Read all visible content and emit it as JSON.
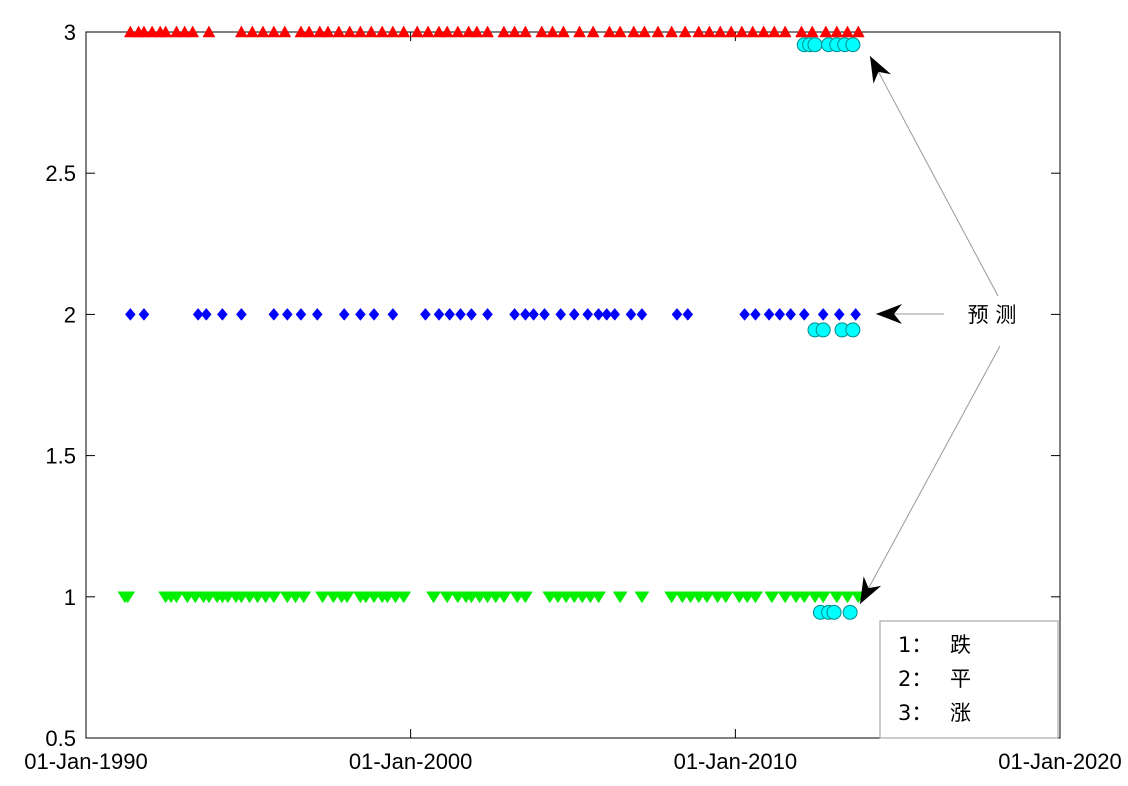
{
  "chart_data": {
    "type": "scatter",
    "title": "",
    "xlabel": "",
    "ylabel": "",
    "x_axis": {
      "scale": "date",
      "range": [
        "1989-06-01",
        "2020-01-01"
      ],
      "ticks": [
        {
          "date": "1990-01-01",
          "label": "01-Jan-1990"
        },
        {
          "date": "2000-01-01",
          "label": "01-Jan-2000"
        },
        {
          "date": "2010-01-01",
          "label": "01-Jan-2010"
        },
        {
          "date": "2020-01-01",
          "label": "01-Jan-2020"
        }
      ]
    },
    "y_axis": {
      "range": [
        0.5,
        3
      ],
      "ticks": [
        {
          "value": 0.5,
          "label": "0.5"
        },
        {
          "value": 1,
          "label": "1"
        },
        {
          "value": 1.5,
          "label": "1.5"
        },
        {
          "value": 2,
          "label": "2"
        },
        {
          "value": 2.5,
          "label": "2.5"
        },
        {
          "value": 3,
          "label": "3"
        }
      ]
    },
    "grid": false,
    "series": [
      {
        "marker": "triangle-down",
        "color": "#00ee00",
        "y": 1,
        "x": [
          "1991-03",
          "1991-04",
          "1992-06",
          "1992-08",
          "1992-10",
          "1993-02",
          "1993-05",
          "1993-08",
          "1993-10",
          "1994-01",
          "1994-03",
          "1994-05",
          "1994-08",
          "1994-10",
          "1995-01",
          "1995-04",
          "1995-07",
          "1995-10",
          "1996-03",
          "1996-06",
          "1996-09",
          "1997-04",
          "1997-08",
          "1997-11",
          "1998-01",
          "1998-06",
          "1998-08",
          "1998-11",
          "1999-02",
          "1999-04",
          "1999-07",
          "1999-10",
          "2000-09",
          "2001-02",
          "2001-06",
          "2001-09",
          "2001-11",
          "2002-02",
          "2002-05",
          "2002-08",
          "2002-11",
          "2003-04",
          "2003-07",
          "2004-04",
          "2004-07",
          "2004-10",
          "2005-01",
          "2005-04",
          "2005-07",
          "2005-10",
          "2006-06",
          "2007-02",
          "2008-01",
          "2008-05",
          "2008-08",
          "2008-11",
          "2009-02",
          "2009-06",
          "2009-09",
          "2010-02",
          "2010-05",
          "2010-08",
          "2011-02",
          "2011-07",
          "2011-11",
          "2012-02",
          "2012-06",
          "2012-09",
          "2013-02",
          "2013-06",
          "2013-10"
        ]
      },
      {
        "marker": "diamond",
        "color": "#0000ff",
        "y": 2,
        "x": [
          "1991-05",
          "1991-10",
          "1993-06",
          "1993-09",
          "1994-03",
          "1994-10",
          "1995-10",
          "1996-03",
          "1996-08",
          "1997-02",
          "1997-12",
          "1998-06",
          "1998-11",
          "1999-06",
          "2000-06",
          "2000-11",
          "2001-03",
          "2001-07",
          "2001-11",
          "2002-05",
          "2003-03",
          "2003-07",
          "2003-10",
          "2004-02",
          "2004-08",
          "2005-01",
          "2005-06",
          "2005-10",
          "2006-01",
          "2006-04",
          "2006-10",
          "2007-02",
          "2008-03",
          "2008-07",
          "2010-04",
          "2010-08",
          "2011-01",
          "2011-05",
          "2011-09",
          "2012-02",
          "2012-09",
          "2013-03",
          "2013-09"
        ]
      },
      {
        "marker": "triangle-up",
        "color": "#ff0000",
        "y": 3,
        "x": [
          "1991-05",
          "1991-08",
          "1991-10",
          "1992-01",
          "1992-04",
          "1992-06",
          "1992-10",
          "1993-01",
          "1993-04",
          "1993-10",
          "1994-10",
          "1995-02",
          "1995-06",
          "1995-10",
          "1996-02",
          "1996-08",
          "1996-11",
          "1997-03",
          "1997-06",
          "1997-10",
          "1998-02",
          "1998-06",
          "1998-10",
          "1999-02",
          "1999-06",
          "1999-10",
          "2000-03",
          "2000-07",
          "2000-11",
          "2001-02",
          "2001-06",
          "2001-10",
          "2002-01",
          "2002-05",
          "2002-11",
          "2003-03",
          "2003-07",
          "2004-01",
          "2004-05",
          "2004-09",
          "2005-03",
          "2005-08",
          "2006-02",
          "2006-06",
          "2006-11",
          "2007-03",
          "2007-08",
          "2008-01",
          "2008-06",
          "2008-11",
          "2009-03",
          "2009-07",
          "2009-11",
          "2010-03",
          "2010-07",
          "2010-11",
          "2011-03",
          "2011-07",
          "2012-01",
          "2012-05",
          "2012-10",
          "2013-02",
          "2013-06",
          "2013-10"
        ]
      },
      {
        "marker": "circle",
        "color": "#00ffff",
        "x": [
          "2012-02",
          "2012-04",
          "2012-06",
          "2012-11",
          "2013-02",
          "2013-05",
          "2013-08",
          "2012-06",
          "2012-09",
          "2013-04",
          "2013-08",
          "2012-08",
          "2012-11",
          "2013-01",
          "2013-07"
        ],
        "y": [
          2.955,
          2.955,
          2.955,
          2.955,
          2.955,
          2.955,
          2.955,
          1.945,
          1.945,
          1.945,
          1.945,
          0.945,
          0.945,
          0.945,
          0.945
        ]
      }
    ],
    "annotation": {
      "text": "预 测",
      "target": "prediction markers (cyan circles)"
    },
    "legend": {
      "placement": "bottom-right",
      "entries": [
        {
          "num": "1：",
          "text": "跌"
        },
        {
          "num": "2：",
          "text": "平"
        },
        {
          "num": "3：",
          "text": "涨"
        }
      ]
    }
  }
}
